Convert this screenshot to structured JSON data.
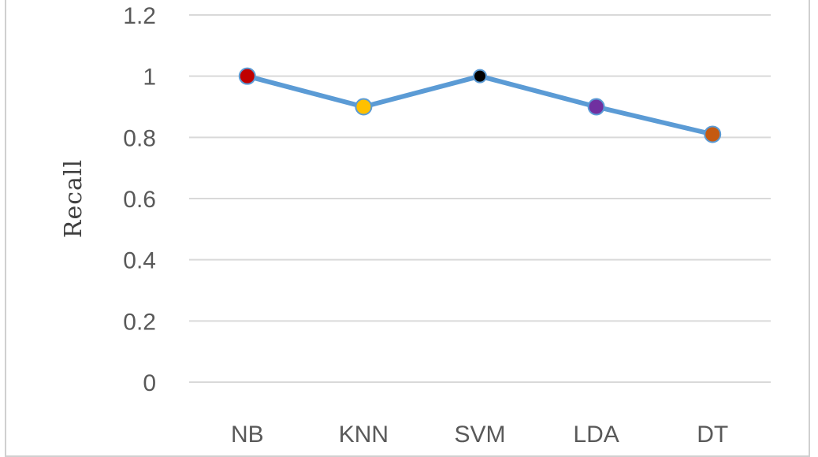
{
  "chart_data": {
    "type": "line",
    "categories": [
      "NB",
      "KNN",
      "SVM",
      "LDA",
      "DT"
    ],
    "series": [
      {
        "values": [
          1.0,
          0.9,
          1.0,
          0.9,
          0.81
        ],
        "color": "#5b9bd5",
        "point_colors": [
          "#c00000",
          "#ffc000",
          "#000000",
          "#7030a0",
          "#c55a11"
        ]
      }
    ],
    "ylabel": "Recall",
    "xlabel": "",
    "title": "",
    "ylim": [
      0,
      1.2
    ],
    "yticks": [
      "0",
      "0.2",
      "0.4",
      "0.6",
      "0.8",
      "1",
      "1.2"
    ],
    "grid": true,
    "legend": "none"
  }
}
